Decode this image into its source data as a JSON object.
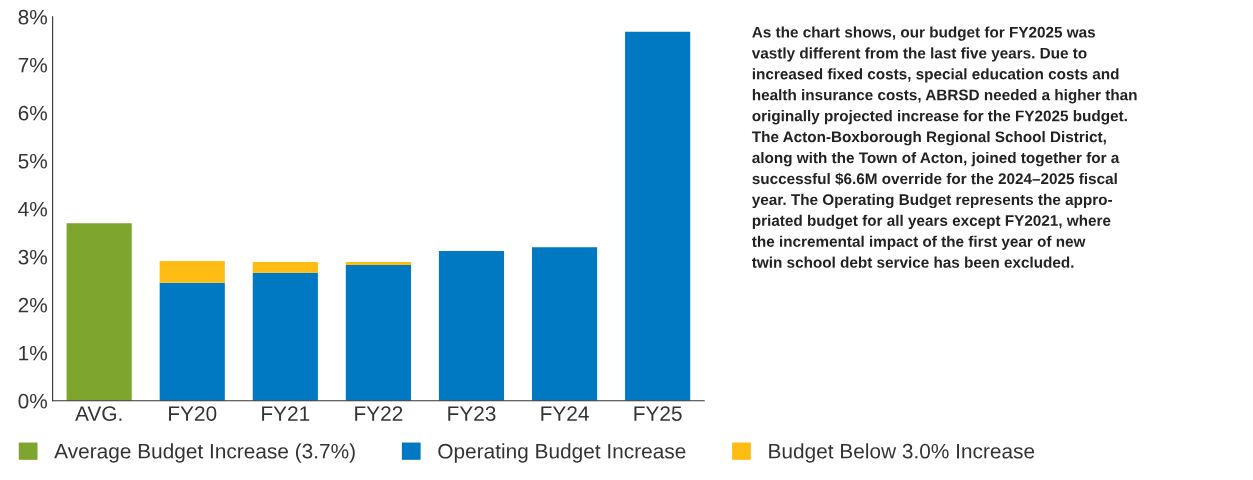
{
  "chart_data": {
    "type": "bar",
    "stacked": true,
    "categories": [
      "AVG.",
      "FY20",
      "FY21",
      "FY22",
      "FY23",
      "FY24",
      "FY25"
    ],
    "series": [
      {
        "name": "Average Budget Increase (3.7%)",
        "color": "#7ea52e",
        "values": [
          3.7,
          null,
          null,
          null,
          null,
          null,
          null
        ]
      },
      {
        "name": "Operating Budget Increase",
        "color": "#0079c2",
        "values": [
          null,
          2.46,
          2.67,
          2.83,
          3.12,
          3.2,
          7.69
        ]
      },
      {
        "name": "Budget Below 3.0% Increase",
        "color": "#ffbc12",
        "values": [
          null,
          0.45,
          0.22,
          0.06,
          null,
          null,
          null
        ]
      }
    ],
    "ylim": [
      0,
      8
    ],
    "yticks": [
      {
        "value": 0,
        "label": "0%"
      },
      {
        "value": 1,
        "label": "1%"
      },
      {
        "value": 2,
        "label": "2%"
      },
      {
        "value": 3,
        "label": "3%"
      },
      {
        "value": 4,
        "label": "4%"
      },
      {
        "value": 5,
        "label": "5%"
      },
      {
        "value": 6,
        "label": "6%"
      },
      {
        "value": 7,
        "label": "7%"
      },
      {
        "value": 8,
        "label": "8%"
      }
    ],
    "grid": false,
    "legend": "bottom",
    "annotations": [
      "As the chart shows, our budget for FY2025 was\nvastly different from the last five years. Due to\nincreased fixed costs, special education costs and\nhealth insurance costs, ABRSD needed a higher than\noriginally projected increase for the FY2025 budget.\nThe Acton-Boxborough Regional School District,\nalong with the Town of Acton, joined together for a\nsuccessful $6.6M override for the 2024–2025 fiscal\nyear. The Operating Budget represents the appro-\npriated budget for all years except FY2021, where\nthe incremental impact of the first year of new\ntwin school debt service has been excluded."
    ]
  }
}
